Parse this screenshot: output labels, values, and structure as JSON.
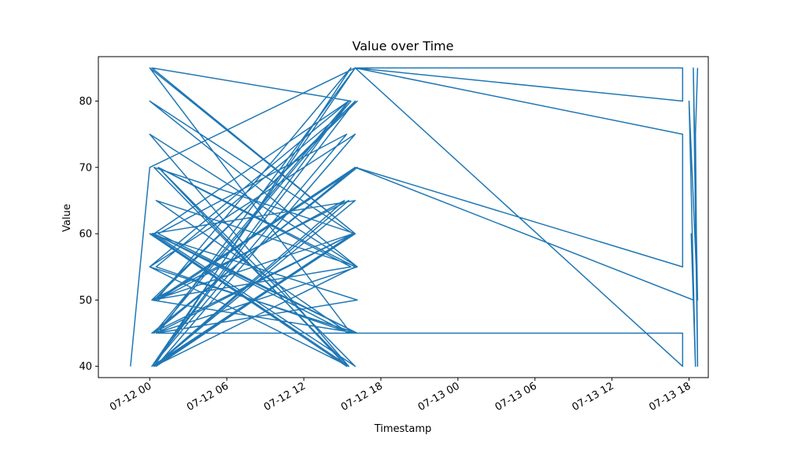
{
  "chart_data": {
    "type": "line",
    "title": "Value over Time",
    "xlabel": "Timestamp",
    "ylabel": "Value",
    "x_ticks": [
      "07-12 00",
      "07-12 06",
      "07-12 12",
      "07-12 18",
      "07-13 00",
      "07-13 06",
      "07-13 12",
      "07-13 18"
    ],
    "y_ticks": [
      40,
      50,
      60,
      70,
      80
    ],
    "xlim": [
      "2024-07-11 20:00",
      "2024-07-13 19:30"
    ],
    "ylim": [
      38.3,
      86.7
    ],
    "grid": false,
    "color": "#1f77b4",
    "series": [
      {
        "x": [
          "2024-07-11 22:30",
          "2024-07-12 00:00",
          "2024-07-12 16:00",
          "2024-07-12 00:10",
          "2024-07-12 15:30",
          "2024-07-12 00:20",
          "2024-07-12 16:00",
          "2024-07-12 00:30",
          "2024-07-12 15:40",
          "2024-07-12 00:20",
          "2024-07-12 16:00",
          "2024-07-12 00:10",
          "2024-07-12 15:30",
          "2024-07-12 00:00",
          "2024-07-12 16:10",
          "2024-07-12 00:30",
          "2024-07-12 15:50",
          "2024-07-12 00:20",
          "2024-07-12 16:00",
          "2024-07-12 00:10",
          "2024-07-12 15:20",
          "2024-07-12 00:40",
          "2024-07-12 16:10",
          "2024-07-12 00:00",
          "2024-07-12 15:30",
          "2024-07-12 00:20",
          "2024-07-12 16:00",
          "2024-07-12 00:10",
          "2024-07-12 15:40",
          "2024-07-12 00:30",
          "2024-07-12 16:10",
          "2024-07-12 00:00",
          "2024-07-12 15:20",
          "2024-07-12 00:40",
          "2024-07-12 16:00",
          "2024-07-12 00:20",
          "2024-07-12 15:30",
          "2024-07-12 00:10",
          "2024-07-12 16:10",
          "2024-07-12 00:30",
          "2024-07-12 15:40",
          "2024-07-12 00:00",
          "2024-07-12 16:00",
          "2024-07-12 00:20",
          "2024-07-12 15:10",
          "2024-07-12 00:40",
          "2024-07-12 16:10",
          "2024-07-12 00:10",
          "2024-07-12 15:50",
          "2024-07-12 00:30",
          "2024-07-12 16:00",
          "2024-07-12 00:00",
          "2024-07-12 15:30",
          "2024-07-12 00:20",
          "2024-07-12 16:10",
          "2024-07-12 00:10",
          "2024-07-12 15:40",
          "2024-07-12 00:40",
          "2024-07-12 16:00",
          "2024-07-12 00:20",
          "2024-07-12 15:30",
          "2024-07-12 00:30",
          "2024-07-12 16:10",
          "2024-07-12 00:00",
          "2024-07-12 15:50",
          "2024-07-12 00:10",
          "2024-07-12 16:00",
          "2024-07-12 00:40",
          "2024-07-12 16:00",
          "2024-07-13 17:30",
          "2024-07-13 17:30",
          "2024-07-12 16:00",
          "2024-07-13 17:30",
          "2024-07-13 17:30",
          "2024-07-12 16:00",
          "2024-07-13 17:30",
          "2024-07-13 17:30",
          "2024-07-12 16:00",
          "2024-07-13 18:20",
          "2024-07-13 18:10",
          "2024-07-13 18:30",
          "2024-07-13 18:00",
          "2024-07-13 18:40",
          "2024-07-13 18:20",
          "2024-07-13 18:40",
          "2024-07-13 18:30",
          "2024-07-13 18:40"
        ],
        "y": [
          40,
          70,
          85,
          40,
          80,
          45,
          70,
          50,
          85,
          40,
          65,
          60,
          40,
          75,
          55,
          45,
          60,
          50,
          80,
          40,
          75,
          60,
          45,
          55,
          40,
          70,
          60,
          85,
          80,
          45,
          50,
          60,
          40,
          70,
          55,
          40,
          65,
          50,
          80,
          55,
          45,
          85,
          60,
          40,
          65,
          50,
          70,
          45,
          60,
          40,
          75,
          55,
          80,
          60,
          45,
          50,
          55,
          70,
          40,
          60,
          45,
          65,
          55,
          80,
          60,
          40,
          85,
          45,
          45,
          45,
          40,
          85,
          85,
          80,
          85,
          75,
          55,
          70,
          50,
          60,
          40,
          80,
          50,
          85,
          40,
          75,
          85
        ]
      }
    ]
  }
}
